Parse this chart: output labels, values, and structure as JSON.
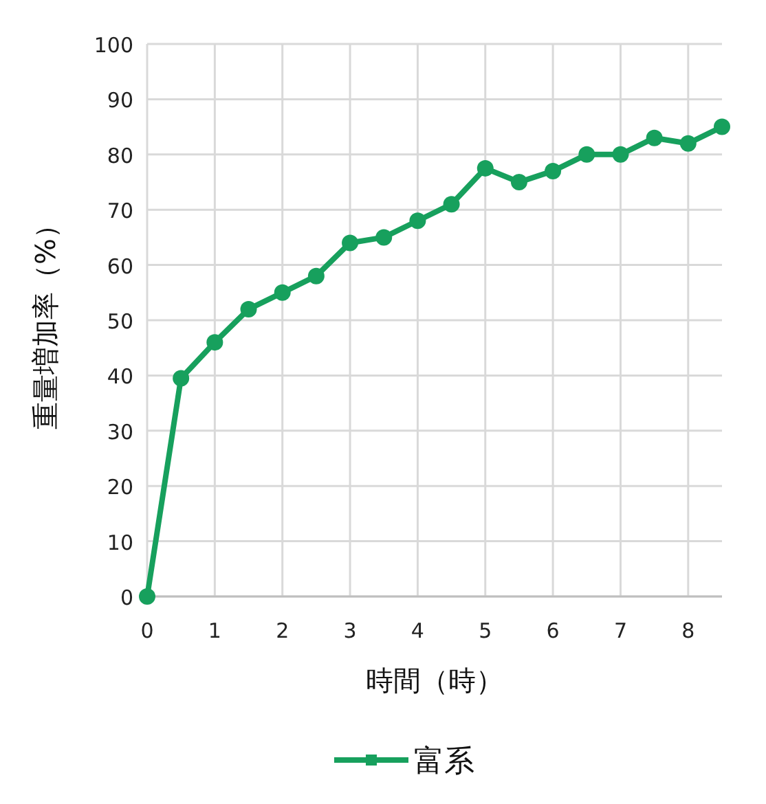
{
  "chart_data": {
    "type": "line",
    "xlabel": "時間（時）",
    "ylabel": "重量増加率（%）",
    "x": [
      0,
      0.5,
      1,
      1.5,
      2,
      2.5,
      3,
      3.5,
      4,
      4.5,
      5,
      5.5,
      6,
      6.5,
      7,
      7.5,
      8,
      8.5
    ],
    "series": [
      {
        "name": "富系",
        "color": "#17a05d",
        "values": [
          0,
          39.5,
          46,
          52,
          55,
          58,
          64,
          65,
          68,
          71,
          77.5,
          75,
          77,
          80,
          80,
          83,
          82,
          85
        ]
      }
    ],
    "xlim": [
      0,
      8.5
    ],
    "ylim": [
      0,
      100
    ],
    "xticks": [
      0,
      1,
      2,
      3,
      4,
      5,
      6,
      7,
      8
    ],
    "yticks": [
      0,
      10,
      20,
      30,
      40,
      50,
      60,
      70,
      80,
      90,
      100
    ],
    "grid": true,
    "legend": "bottom",
    "marker": "circle",
    "line_style": "solid"
  }
}
